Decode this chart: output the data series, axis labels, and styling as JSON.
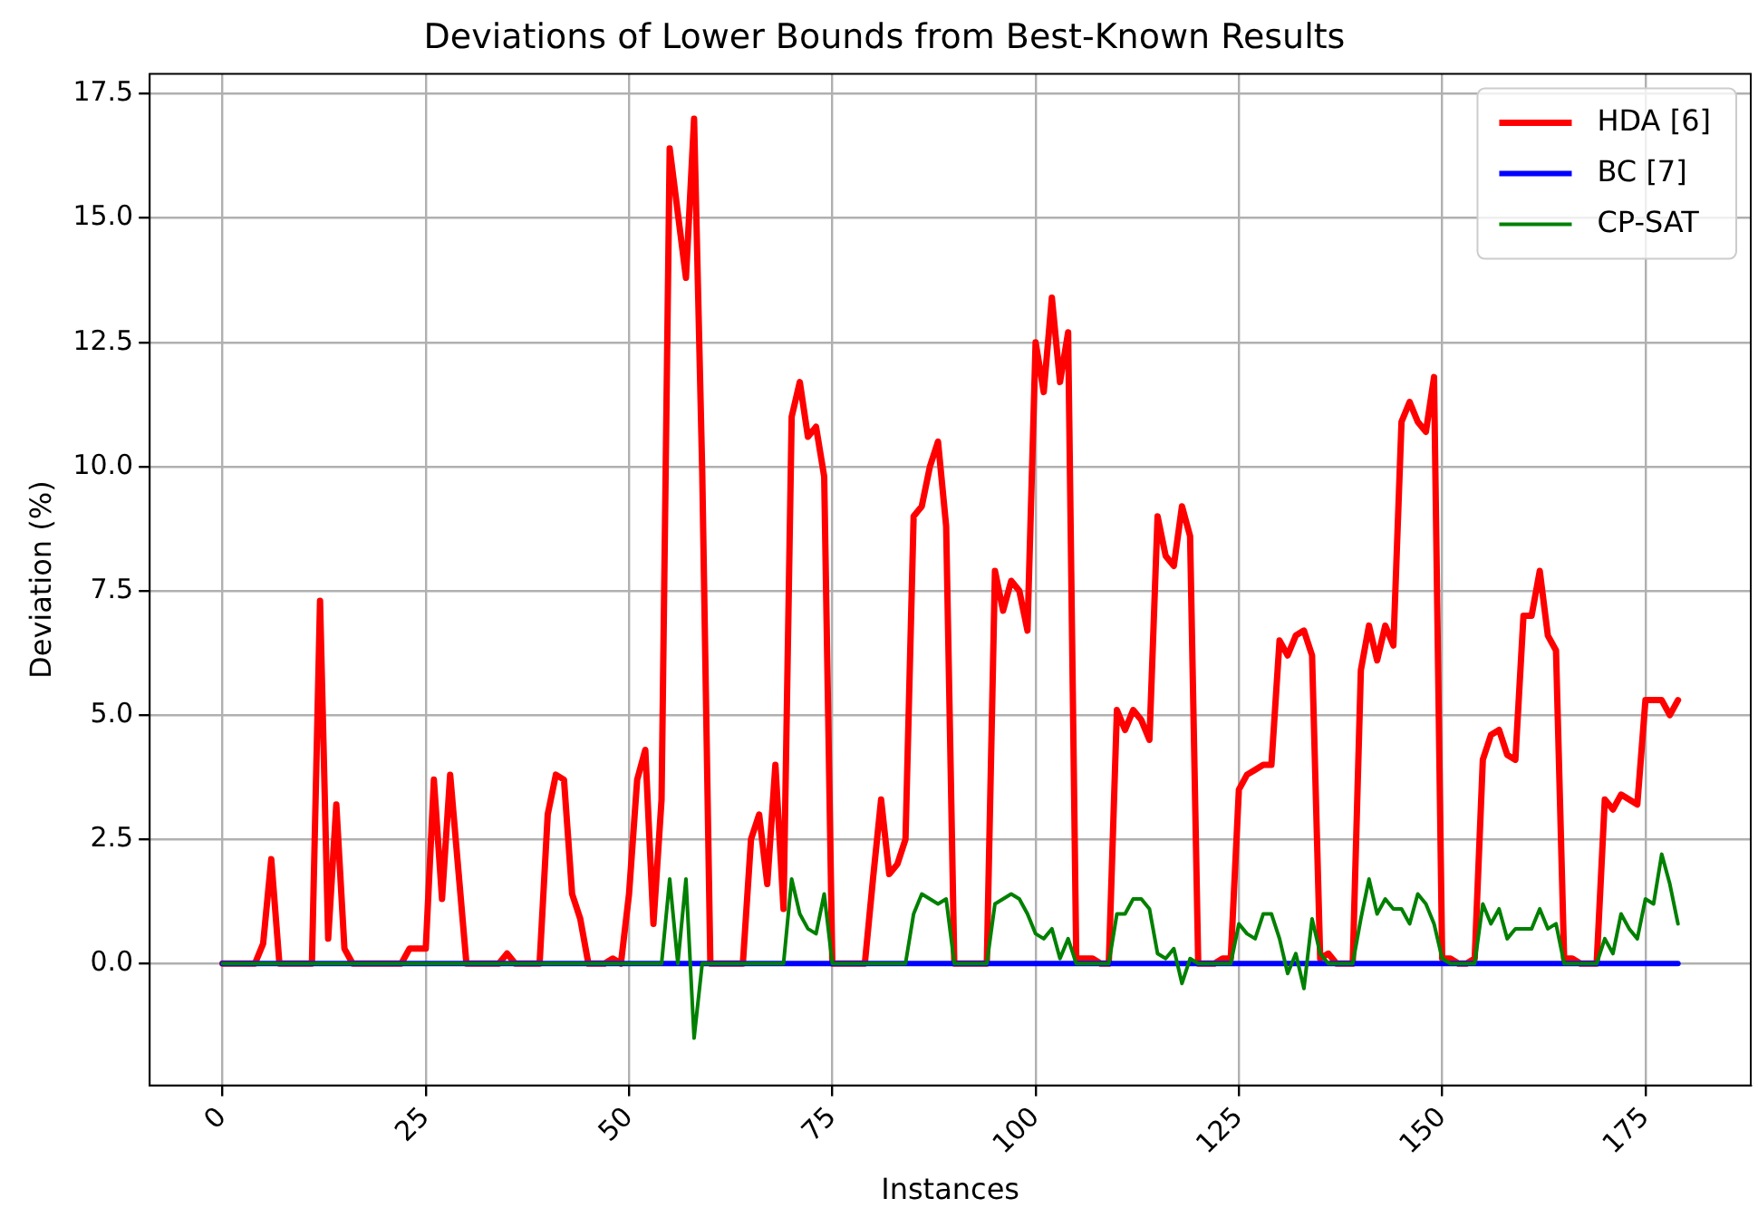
{
  "chart_data": {
    "type": "line",
    "title": "Deviations of Lower Bounds from Best-Known Results",
    "xlabel": "Instances",
    "ylabel": "Deviation (%)",
    "x": [
      0,
      1,
      2,
      3,
      4,
      5,
      6,
      7,
      8,
      9,
      10,
      11,
      12,
      13,
      14,
      15,
      16,
      17,
      18,
      19,
      20,
      21,
      22,
      23,
      24,
      25,
      26,
      27,
      28,
      29,
      30,
      31,
      32,
      33,
      34,
      35,
      36,
      37,
      38,
      39,
      40,
      41,
      42,
      43,
      44,
      45,
      46,
      47,
      48,
      49,
      50,
      51,
      52,
      53,
      54,
      55,
      56,
      57,
      58,
      59,
      60,
      61,
      62,
      63,
      64,
      65,
      66,
      67,
      68,
      69,
      70,
      71,
      72,
      73,
      74,
      75,
      76,
      77,
      78,
      79,
      80,
      81,
      82,
      83,
      84,
      85,
      86,
      87,
      88,
      89,
      90,
      91,
      92,
      93,
      94,
      95,
      96,
      97,
      98,
      99,
      100,
      101,
      102,
      103,
      104,
      105,
      106,
      107,
      108,
      109,
      110,
      111,
      112,
      113,
      114,
      115,
      116,
      117,
      118,
      119,
      120,
      121,
      122,
      123,
      124,
      125,
      126,
      127,
      128,
      129,
      130,
      131,
      132,
      133,
      134,
      135,
      136,
      137,
      138,
      139,
      140,
      141,
      142,
      143,
      144,
      145,
      146,
      147,
      148,
      149,
      150,
      151,
      152,
      153,
      154,
      155,
      156,
      157,
      158,
      159,
      160,
      161,
      162,
      163,
      164,
      165,
      166,
      167,
      168,
      169,
      170,
      171,
      172,
      173,
      174,
      175,
      176,
      177,
      178,
      179
    ],
    "series": [
      {
        "name": "HDA [6]",
        "color": "#ff0000",
        "values": [
          0,
          0,
          0,
          0,
          0,
          0.4,
          2.1,
          0,
          0,
          0,
          0,
          0,
          7.3,
          0.5,
          3.2,
          0.3,
          0,
          0,
          0,
          0,
          0,
          0,
          0,
          0.3,
          0.3,
          0.3,
          3.7,
          1.3,
          3.8,
          1.9,
          0,
          0,
          0,
          0,
          0,
          0.2,
          0,
          0,
          0,
          0,
          3.0,
          3.8,
          3.7,
          1.4,
          0.9,
          0,
          0,
          0,
          0.1,
          0,
          1.4,
          3.7,
          4.3,
          0.8,
          3.3,
          16.4,
          15.1,
          13.8,
          17.0,
          9.9,
          0,
          0,
          0,
          0,
          0,
          2.5,
          3.0,
          1.6,
          4.0,
          1.1,
          11.0,
          11.7,
          10.6,
          10.8,
          9.8,
          0,
          0,
          0,
          0,
          0,
          1.7,
          3.3,
          1.8,
          2.0,
          2.5,
          9.0,
          9.2,
          10.0,
          10.5,
          8.8,
          0,
          0,
          0,
          0,
          0,
          7.9,
          7.1,
          7.7,
          7.5,
          6.7,
          12.5,
          11.5,
          13.4,
          11.7,
          12.7,
          0.1,
          0.1,
          0.1,
          0,
          0,
          5.1,
          4.7,
          5.1,
          4.9,
          4.5,
          9.0,
          8.2,
          8.0,
          9.2,
          8.6,
          0,
          0,
          0,
          0.1,
          0.1,
          3.5,
          3.8,
          3.9,
          4.0,
          4.0,
          6.5,
          6.2,
          6.6,
          6.7,
          6.2,
          0.1,
          0.2,
          0,
          0,
          0,
          5.9,
          6.8,
          6.1,
          6.8,
          6.4,
          10.9,
          11.3,
          10.9,
          10.7,
          11.8,
          0.1,
          0.1,
          0,
          0,
          0.1,
          4.1,
          4.6,
          4.7,
          4.2,
          4.1,
          7.0,
          7.0,
          7.9,
          6.6,
          6.3,
          0.1,
          0.1,
          0,
          0,
          0,
          3.3,
          3.1,
          3.4,
          3.3,
          3.2,
          5.3,
          5.3,
          5.3,
          5.0,
          5.3
        ]
      },
      {
        "name": "BC [7]",
        "color": "#0000ff",
        "values": [
          0,
          0,
          0,
          0,
          0,
          0,
          0,
          0,
          0,
          0,
          0,
          0,
          0,
          0,
          0,
          0,
          0,
          0,
          0,
          0,
          0,
          0,
          0,
          0,
          0,
          0,
          0,
          0,
          0,
          0,
          0,
          0,
          0,
          0,
          0,
          0,
          0,
          0,
          0,
          0,
          0,
          0,
          0,
          0,
          0,
          0,
          0,
          0,
          0,
          0,
          0,
          0,
          0,
          0,
          0,
          0,
          0,
          0,
          0,
          0,
          0,
          0,
          0,
          0,
          0,
          0,
          0,
          0,
          0,
          0,
          0,
          0,
          0,
          0,
          0,
          0,
          0,
          0,
          0,
          0,
          0,
          0,
          0,
          0,
          0,
          0,
          0,
          0,
          0,
          0,
          0,
          0,
          0,
          0,
          0,
          0,
          0,
          0,
          0,
          0,
          0,
          0,
          0,
          0,
          0,
          0,
          0,
          0,
          0,
          0,
          0,
          0,
          0,
          0,
          0,
          0,
          0,
          0,
          0,
          0,
          0,
          0,
          0,
          0,
          0,
          0,
          0,
          0,
          0,
          0,
          0,
          0,
          0,
          0,
          0,
          0,
          0,
          0,
          0,
          0,
          0,
          0,
          0,
          0,
          0,
          0,
          0,
          0,
          0,
          0,
          0,
          0,
          0,
          0,
          0,
          0,
          0,
          0,
          0,
          0,
          0,
          0,
          0,
          0,
          0,
          0,
          0,
          0,
          0,
          0,
          0,
          0,
          0,
          0,
          0,
          0,
          0,
          0,
          0,
          0
        ]
      },
      {
        "name": "CP-SAT",
        "color": "#008000",
        "values": [
          0,
          0,
          0,
          0,
          0,
          0,
          0,
          0,
          0,
          0,
          0,
          0,
          0,
          0,
          0,
          0,
          0,
          0,
          0,
          0,
          0,
          0,
          0,
          0,
          0,
          0,
          0,
          0,
          0,
          0,
          0,
          0,
          0,
          0,
          0,
          0,
          0,
          0,
          0,
          0,
          0,
          0,
          0,
          0,
          0,
          0,
          0,
          0,
          0,
          0,
          0,
          0,
          0,
          0,
          0,
          1.7,
          0,
          1.7,
          -1.5,
          0,
          0,
          0,
          0,
          0,
          0,
          0,
          0,
          0,
          0,
          0,
          1.7,
          1.0,
          0.7,
          0.6,
          1.4,
          0,
          0,
          0,
          0,
          0,
          0,
          0,
          0,
          0,
          0,
          1.0,
          1.4,
          1.3,
          1.2,
          1.3,
          0,
          0,
          0,
          0,
          0,
          1.2,
          1.3,
          1.4,
          1.3,
          1.0,
          0.6,
          0.5,
          0.7,
          0.1,
          0.5,
          0,
          0,
          0,
          0,
          0,
          1.0,
          1.0,
          1.3,
          1.3,
          1.1,
          0.2,
          0.1,
          0.3,
          -0.4,
          0.1,
          0,
          0,
          0,
          0,
          0,
          0.8,
          0.6,
          0.5,
          1.0,
          1.0,
          0.5,
          -0.2,
          0.2,
          -0.5,
          0.9,
          0.2,
          0,
          0,
          0,
          0,
          0.9,
          1.7,
          1.0,
          1.3,
          1.1,
          1.1,
          0.8,
          1.4,
          1.2,
          0.8,
          0.1,
          0,
          0,
          0,
          0,
          1.2,
          0.8,
          1.1,
          0.5,
          0.7,
          0.7,
          0.7,
          1.1,
          0.7,
          0.8,
          0,
          0,
          0,
          0,
          0,
          0.5,
          0.2,
          1.0,
          0.7,
          0.5,
          1.3,
          1.2,
          2.2,
          1.6,
          0.8
        ]
      }
    ],
    "xlim": [
      -8.95,
      187.95
    ],
    "xticks": [
      0,
      25,
      50,
      75,
      100,
      125,
      150,
      175
    ],
    "ylim": [
      -2.45,
      17.9
    ],
    "yticks": [
      {
        "value": 0,
        "label": "0.0"
      },
      2.5,
      {
        "value": 5,
        "label": "5.0"
      },
      7.5,
      {
        "value": 10,
        "label": "10.0"
      },
      12.5,
      {
        "value": 15,
        "label": "15.0"
      },
      17.5
    ],
    "grid": true,
    "legend": "top right",
    "marker": "none",
    "line_style": "solid"
  }
}
